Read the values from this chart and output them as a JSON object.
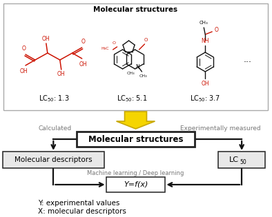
{
  "title_top_box": "Molecular structures",
  "top_box_edge": "#aaaaaa",
  "lc50_labels": [
    "LC",
    "LC",
    "LC"
  ],
  "lc50_values": [
    "1.3",
    "5.1",
    "3.7"
  ],
  "dots_label": "...",
  "mol_structures_label": "Molecular structures",
  "calculated_label": "Calculated",
  "exp_measured_label": "Experimentally measured",
  "mol_desc_label": "Molecular descriptors",
  "lc50_box_label": "LC",
  "yfx_label": "Y=f(x)",
  "ml_label": "Machine learning / Deep learning",
  "bottom_text1": "Y: experimental values",
  "bottom_text2": "X: molecular descriptors",
  "arrow_fill": "#f5d500",
  "arrow_edge": "#c8a800",
  "box_edge_color": "#222222",
  "flow_line_color": "#111111",
  "background": "#ffffff",
  "red_color": "#cc1100",
  "black_color": "#111111",
  "gray_label_color": "#777777",
  "mol_box_bg": "#e8e8e8"
}
